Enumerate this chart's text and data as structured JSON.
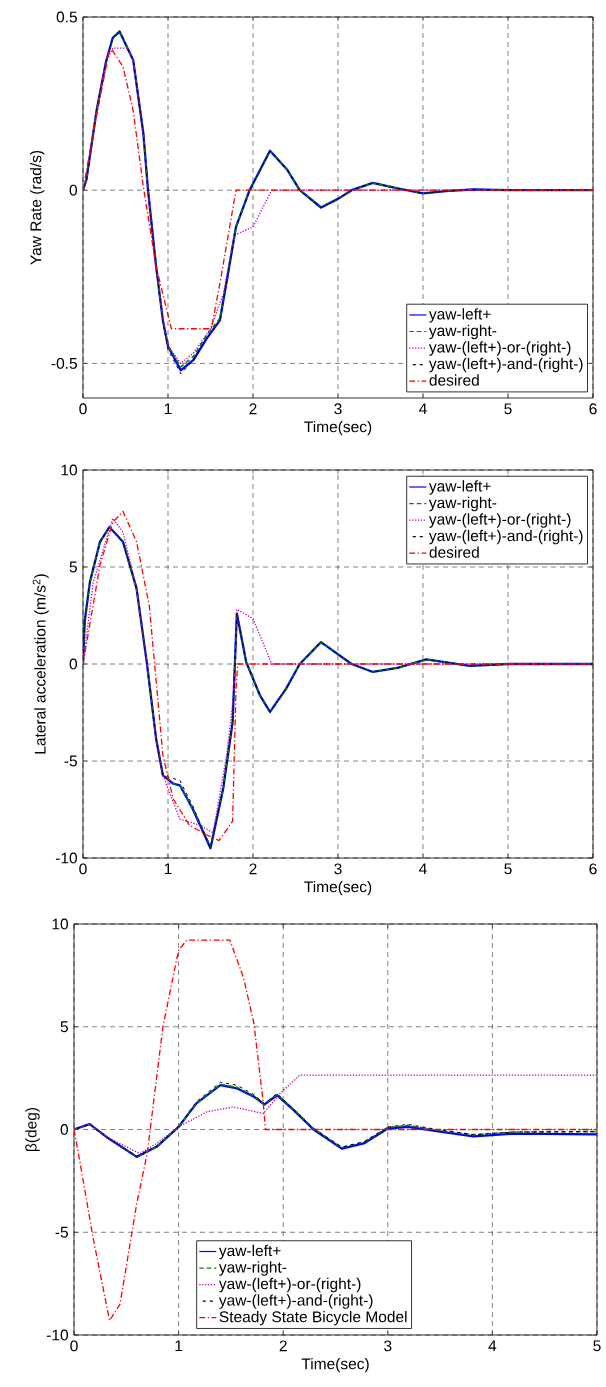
{
  "chart_data": [
    {
      "type": "line",
      "xlabel": "Time(sec)",
      "ylabel": "Yaw Rate (rad/s)",
      "xlim": [
        0,
        6
      ],
      "ylim": [
        -0.6,
        0.5
      ],
      "xticks": [
        0,
        1,
        2,
        3,
        4,
        5,
        6
      ],
      "yticks": [
        -0.5,
        0,
        0.5
      ],
      "grid": true,
      "legend": "bottom right",
      "series": [
        {
          "name": "yaw-left+",
          "color": "#0000ff",
          "line_style": "solid",
          "x": [
            0,
            0.04,
            0.16,
            0.27,
            0.35,
            0.43,
            0.59,
            0.71,
            0.765,
            0.86,
            0.94,
            1.0,
            1.15,
            1.3,
            1.45,
            1.61,
            1.7,
            1.8,
            1.96,
            2.2,
            2.4,
            2.55,
            2.8,
            3.0,
            3.16,
            3.41,
            3.7,
            4.0,
            4.3,
            4.6,
            5,
            6
          ],
          "values": [
            0,
            0.03,
            0.23,
            0.37,
            0.44,
            0.458,
            0.376,
            0.164,
            0,
            -0.22,
            -0.376,
            -0.45,
            -0.52,
            -0.49,
            -0.43,
            -0.376,
            -0.25,
            -0.106,
            0,
            0.114,
            0.06,
            0,
            -0.05,
            -0.025,
            0,
            0.021,
            0.005,
            -0.009,
            -0.002,
            0.002,
            0,
            0
          ]
        },
        {
          "name": "yaw-right-",
          "color": "#008000",
          "line_style": "dashed",
          "x": [
            0,
            0.04,
            0.16,
            0.27,
            0.35,
            0.43,
            0.59,
            0.71,
            0.765,
            0.86,
            0.94,
            1.0,
            1.15,
            1.3,
            1.45,
            1.61,
            1.7,
            1.8,
            1.96,
            2.2,
            2.4,
            2.55,
            2.8,
            3.0,
            3.16,
            3.41,
            3.7,
            4.0,
            4.3,
            4.6,
            5,
            6
          ],
          "values": [
            0,
            0.03,
            0.23,
            0.37,
            0.44,
            0.458,
            0.376,
            0.164,
            0,
            -0.22,
            -0.376,
            -0.45,
            -0.51,
            -0.48,
            -0.42,
            -0.37,
            -0.25,
            -0.106,
            0,
            0.114,
            0.06,
            0,
            -0.05,
            -0.025,
            0,
            0.021,
            0.005,
            -0.009,
            -0.002,
            0.002,
            0,
            0
          ]
        },
        {
          "name": "yaw-(left+)-or-(right-)",
          "color": "#bf00bf",
          "line_style": "dotted",
          "x": [
            0,
            0.04,
            0.16,
            0.27,
            0.35,
            0.53,
            0.59,
            0.71,
            0.765,
            0.86,
            0.94,
            1.0,
            1.15,
            1.3,
            1.5,
            1.65,
            1.78,
            2.0,
            2.22,
            6
          ],
          "values": [
            0,
            0.03,
            0.23,
            0.37,
            0.41,
            0.41,
            0.376,
            0.164,
            0,
            -0.22,
            -0.376,
            -0.45,
            -0.5,
            -0.47,
            -0.4,
            -0.3,
            -0.13,
            -0.106,
            0,
            0
          ]
        },
        {
          "name": "yaw-(left+)-and-(right-)",
          "color": "#000000",
          "line_style": "dashed",
          "x": [
            0,
            0.04,
            0.16,
            0.27,
            0.35,
            0.43,
            0.59,
            0.71,
            0.765,
            0.86,
            0.94,
            1.0,
            1.15,
            1.3,
            1.45,
            1.61,
            1.7,
            1.8,
            1.96,
            2.2,
            2.4,
            2.55,
            2.8,
            3.0,
            3.16,
            3.41,
            3.7,
            4.0,
            4.3,
            4.6,
            5,
            6
          ],
          "values": [
            0,
            0.03,
            0.23,
            0.37,
            0.44,
            0.46,
            0.376,
            0.164,
            0,
            -0.22,
            -0.38,
            -0.46,
            -0.53,
            -0.49,
            -0.43,
            -0.376,
            -0.25,
            -0.106,
            0,
            0.114,
            0.06,
            0,
            -0.05,
            -0.025,
            0,
            0.021,
            0.005,
            -0.009,
            -0.002,
            0.002,
            0,
            0
          ]
        },
        {
          "name": "desired",
          "color": "#ff0000",
          "line_style": "dashdot",
          "x": [
            0,
            0.12,
            0.31,
            0.33,
            0.47,
            0.59,
            0.71,
            0.86,
            1.04,
            1.51,
            1.61,
            1.8,
            6
          ],
          "values": [
            0,
            0.164,
            0.405,
            0.41,
            0.357,
            0.23,
            0.01,
            -0.22,
            -0.4,
            -0.4,
            -0.27,
            0,
            0
          ]
        }
      ]
    },
    {
      "type": "line",
      "xlabel": "Time(sec)",
      "ylabel": "Lateral acceleration (m/s$^{2}$)",
      "xlim": [
        0,
        6
      ],
      "ylim": [
        -10,
        10
      ],
      "xticks": [
        0,
        1,
        2,
        3,
        4,
        5,
        6
      ],
      "yticks": [
        -10,
        -5,
        0,
        5,
        10
      ],
      "grid": true,
      "legend": "top right",
      "series": [
        {
          "name": "yaw-left+",
          "color": "#0000ff",
          "line_style": "solid",
          "x": [
            0,
            0.02,
            0.08,
            0.2,
            0.31,
            0.47,
            0.63,
            0.75,
            0.86,
            0.94,
            1.06,
            1.14,
            1.29,
            1.5,
            1.65,
            1.76,
            1.81,
            1.92,
            2.08,
            2.2,
            2.39,
            2.55,
            2.8,
            3.16,
            3.41,
            3.7,
            4.04,
            4.55,
            5,
            6
          ],
          "values": [
            0,
            2.2,
            4.2,
            6.3,
            7.06,
            6.3,
            3.9,
            0.1,
            -3.85,
            -5.74,
            -6.17,
            -6.25,
            -7.46,
            -9.5,
            -6.4,
            -3,
            2.6,
            0.1,
            -1.6,
            -2.47,
            -1.27,
            0,
            1.13,
            0,
            -0.41,
            -0.2,
            0.24,
            -0.1,
            0,
            0
          ]
        },
        {
          "name": "yaw-right-",
          "color": "#008000",
          "line_style": "dashed",
          "x": [
            0,
            0.02,
            0.08,
            0.2,
            0.31,
            0.47,
            0.63,
            0.75,
            0.86,
            0.94,
            1.06,
            1.14,
            1.29,
            1.5,
            1.65,
            1.76,
            1.81,
            1.92,
            2.08,
            2.2,
            2.39,
            2.55,
            2.8,
            3.16,
            3.41,
            3.7,
            4.04,
            4.55,
            5,
            6
          ],
          "values": [
            0,
            2.2,
            4.2,
            6.3,
            7.06,
            6.3,
            3.9,
            0.1,
            -3.85,
            -5.74,
            -6.17,
            -6.25,
            -7.46,
            -9.4,
            -6.4,
            -3,
            2.6,
            0.1,
            -1.6,
            -2.47,
            -1.27,
            0,
            1.13,
            0,
            -0.41,
            -0.2,
            0.24,
            -0.1,
            0,
            0
          ]
        },
        {
          "name": "yaw-(left+)-or-(right-)",
          "color": "#bf00bf",
          "line_style": "dotted",
          "x": [
            0,
            0.12,
            0.35,
            0.47,
            0.63,
            0.75,
            0.86,
            0.94,
            1.14,
            1.37,
            1.53,
            1.69,
            1.78,
            1.81,
            2.0,
            2.22,
            6
          ],
          "values": [
            0,
            4.2,
            7.5,
            6.8,
            3.9,
            0.1,
            -3.85,
            -5.74,
            -8.0,
            -8.3,
            -8.7,
            -4.7,
            -1.3,
            2.82,
            2.34,
            0,
            0
          ]
        },
        {
          "name": "yaw-(left+)-and-(right-)",
          "color": "#000000",
          "line_style": "dashed",
          "x": [
            0,
            0.02,
            0.08,
            0.2,
            0.31,
            0.47,
            0.63,
            0.75,
            0.86,
            0.94,
            1.06,
            1.14,
            1.29,
            1.5,
            1.65,
            1.76,
            1.81,
            1.92,
            2.08,
            2.2,
            2.39,
            2.55,
            2.8,
            3.16,
            3.41,
            3.7,
            4.04,
            4.55,
            5,
            6
          ],
          "values": [
            0,
            2.2,
            4.2,
            6.3,
            7.06,
            6.3,
            3.9,
            0.1,
            -3.85,
            -5.74,
            -5.9,
            -6.0,
            -7.3,
            -9.5,
            -6.4,
            -3,
            2.6,
            0.1,
            -1.6,
            -2.47,
            -1.27,
            0,
            1.13,
            0,
            -0.41,
            -0.2,
            0.24,
            -0.1,
            0,
            0
          ]
        },
        {
          "name": "desired",
          "color": "#ff0000",
          "line_style": "dashdot",
          "x": [
            0,
            0.2,
            0.35,
            0.47,
            0.63,
            0.78,
            0.94,
            1.06,
            1.25,
            1.45,
            1.6,
            1.76,
            1.8,
            1.82,
            6
          ],
          "values": [
            0,
            5.1,
            7.3,
            7.87,
            6.3,
            3.0,
            -4.7,
            -6.94,
            -8.3,
            -8.8,
            -9.1,
            -8.1,
            -1.3,
            0,
            0
          ]
        }
      ]
    },
    {
      "type": "line",
      "xlabel": "Time(sec)",
      "ylabel": "β(deg)",
      "xlim": [
        0,
        5
      ],
      "ylim": [
        -10,
        10
      ],
      "xticks": [
        0,
        1,
        2,
        3,
        4,
        5
      ],
      "yticks": [
        -10,
        -5,
        0,
        5,
        10
      ],
      "grid": true,
      "legend": "bottom",
      "series": [
        {
          "name": "yaw-left+",
          "color": "#0000ff",
          "line_style": "solid",
          "x": [
            0,
            0.15,
            0.31,
            0.6,
            0.79,
            1.0,
            1.17,
            1.4,
            1.56,
            1.72,
            1.82,
            1.94,
            2.1,
            2.29,
            2.56,
            2.77,
            3.0,
            3.19,
            3.5,
            3.82,
            4.21,
            5
          ],
          "values": [
            0,
            0.26,
            -0.36,
            -1.33,
            -0.84,
            0.13,
            1.27,
            2.16,
            2.0,
            1.6,
            1.22,
            1.67,
            0.94,
            0,
            -0.93,
            -0.68,
            0.05,
            0.13,
            -0.1,
            -0.33,
            -0.2,
            -0.24
          ]
        },
        {
          "name": "yaw-right-",
          "color": "#008000",
          "line_style": "dashed",
          "x": [
            0,
            0.15,
            0.31,
            0.6,
            0.79,
            1.0,
            1.17,
            1.4,
            1.56,
            1.72,
            1.82,
            1.94,
            2.1,
            2.29,
            2.56,
            2.77,
            3.0,
            3.19,
            3.5,
            3.82,
            4.21,
            5
          ],
          "values": [
            0,
            0.26,
            -0.36,
            -1.33,
            -0.84,
            0.13,
            1.27,
            2.2,
            2.05,
            1.62,
            1.22,
            1.7,
            0.98,
            0.05,
            -0.88,
            -0.62,
            0.1,
            0.2,
            -0.05,
            -0.25,
            -0.12,
            -0.1
          ]
        },
        {
          "name": "yaw-(left+)-or-(right-)",
          "color": "#bf00bf",
          "line_style": "dotted",
          "x": [
            0,
            0.15,
            0.31,
            0.63,
            0.79,
            1.0,
            1.27,
            1.52,
            1.81,
            1.97,
            2.16,
            5
          ],
          "values": [
            0,
            0.26,
            -0.36,
            -1.17,
            -0.68,
            0.13,
            0.86,
            1.1,
            0.78,
            1.75,
            2.65,
            2.65
          ]
        },
        {
          "name": "yaw-(left+)-and-(right-)",
          "color": "#000000",
          "line_style": "dashed",
          "x": [
            0,
            0.15,
            0.31,
            0.6,
            0.79,
            1.0,
            1.17,
            1.4,
            1.56,
            1.72,
            1.82,
            1.94,
            2.1,
            2.29,
            2.56,
            2.77,
            3.0,
            3.19,
            3.5,
            3.82,
            4.21,
            5
          ],
          "values": [
            0,
            0.26,
            -0.36,
            -1.3,
            -0.8,
            0.15,
            1.35,
            2.3,
            2.15,
            1.7,
            1.25,
            1.75,
            1.0,
            0.05,
            -0.85,
            -0.6,
            0.12,
            0.25,
            -0.02,
            -0.25,
            -0.12,
            -0.1
          ]
        },
        {
          "name": "Steady State Bicycle Model",
          "color": "#ff0000",
          "line_style": "dashdot",
          "x": [
            0,
            0.054,
            0.18,
            0.34,
            0.44,
            0.6,
            0.7,
            0.85,
            1.0,
            1.08,
            1.49,
            1.62,
            1.72,
            1.81,
            1.83,
            5
          ],
          "values": [
            0,
            -1.5,
            -5.2,
            -9.3,
            -8.5,
            -3.6,
            -1.17,
            5.0,
            8.73,
            9.22,
            9.22,
            7.4,
            5.16,
            1.27,
            0,
            0
          ]
        }
      ]
    }
  ]
}
